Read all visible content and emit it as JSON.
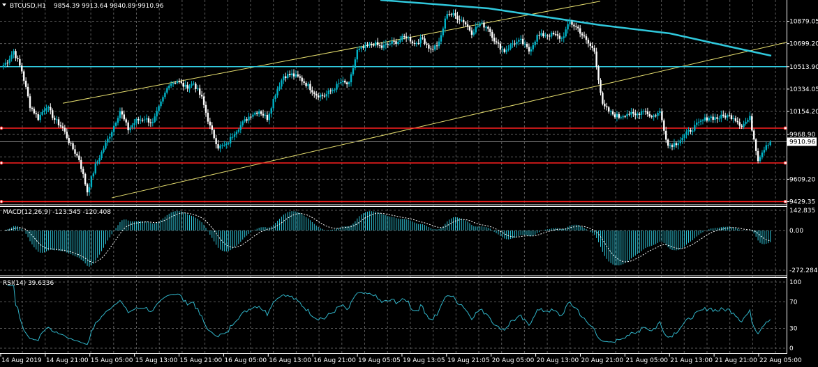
{
  "header": {
    "symbol": "BTCUSD,H1",
    "ohlc": "9854.39 9913.64 9840.89 9910.96"
  },
  "colors": {
    "background": "#000000",
    "grid": "#5a5a5a",
    "bull": "#00b4c8",
    "bear": "#ffffff",
    "support": "#ff2020",
    "trend_channel": "#e8e070",
    "cyan_level": "#30c8dc",
    "macd": "#30c8dc",
    "rsi": "#30b4c8"
  },
  "price_axis": {
    "labels": [
      "10879.05",
      "10699.20",
      "10513.90",
      "10334.05",
      "10154.20",
      "9968.90",
      "9609.20",
      "9429.35"
    ],
    "values": [
      10879.05,
      10699.2,
      10513.9,
      10334.05,
      10154.2,
      9968.9,
      9609.2,
      9429.35
    ],
    "current_price": "9910.96",
    "min": 9410,
    "max": 11050
  },
  "levels": {
    "cyan_horizontal": 10513.9,
    "support_1": 10020,
    "support_2": 9740,
    "support_3": 9429.35
  },
  "macd": {
    "label": "MACD(12,26,9) -123.545 -120.408",
    "axis_labels": [
      "142.835",
      "0.00",
      "-272.284"
    ],
    "axis_values": [
      142.835,
      0,
      -272.284
    ]
  },
  "rsi": {
    "label": "RSI(14) 39.6336",
    "axis_labels": [
      "100",
      "70",
      "30",
      "0"
    ],
    "axis_values": [
      100,
      70,
      30,
      0
    ]
  },
  "time_axis": {
    "labels": [
      "14 Aug 2019",
      "14 Aug 21:00",
      "15 Aug 05:00",
      "15 Aug 13:00",
      "15 Aug 21:00",
      "16 Aug 05:00",
      "16 Aug 13:00",
      "16 Aug 21:00",
      "19 Aug 05:05",
      "19 Aug 13:05",
      "19 Aug 21:05",
      "20 Aug 05:00",
      "20 Aug 13:00",
      "20 Aug 21:00",
      "21 Aug 05:00",
      "21 Aug 13:00",
      "21 Aug 21:00",
      "22 Aug 05:00"
    ]
  },
  "chart_data": {
    "type": "candlestick",
    "symbol": "BTCUSD",
    "timeframe": "H1",
    "anchors": [
      [
        0,
        10510
      ],
      [
        3,
        10560
      ],
      [
        6,
        10640
      ],
      [
        10,
        10480
      ],
      [
        14,
        10200
      ],
      [
        18,
        10100
      ],
      [
        22,
        10200
      ],
      [
        26,
        10090
      ],
      [
        30,
        10020
      ],
      [
        34,
        9880
      ],
      [
        38,
        9770
      ],
      [
        42,
        9510
      ],
      [
        46,
        9720
      ],
      [
        50,
        9860
      ],
      [
        54,
        10000
      ],
      [
        58,
        10160
      ],
      [
        62,
        10010
      ],
      [
        66,
        10080
      ],
      [
        70,
        10100
      ],
      [
        74,
        10060
      ],
      [
        78,
        10220
      ],
      [
        82,
        10380
      ],
      [
        86,
        10400
      ],
      [
        90,
        10350
      ],
      [
        94,
        10380
      ],
      [
        98,
        10260
      ],
      [
        102,
        10030
      ],
      [
        106,
        9870
      ],
      [
        110,
        9880
      ],
      [
        114,
        9990
      ],
      [
        118,
        10060
      ],
      [
        122,
        10130
      ],
      [
        126,
        10160
      ],
      [
        130,
        10100
      ],
      [
        134,
        10300
      ],
      [
        138,
        10440
      ],
      [
        142,
        10450
      ],
      [
        146,
        10420
      ],
      [
        150,
        10360
      ],
      [
        154,
        10290
      ],
      [
        158,
        10280
      ],
      [
        162,
        10330
      ],
      [
        166,
        10390
      ],
      [
        170,
        10370
      ],
      [
        174,
        10640
      ],
      [
        178,
        10670
      ],
      [
        182,
        10700
      ],
      [
        186,
        10670
      ],
      [
        190,
        10700
      ],
      [
        194,
        10720
      ],
      [
        198,
        10760
      ],
      [
        202,
        10700
      ],
      [
        206,
        10740
      ],
      [
        210,
        10650
      ],
      [
        214,
        10700
      ],
      [
        218,
        10950
      ],
      [
        222,
        10920
      ],
      [
        226,
        10880
      ],
      [
        230,
        10790
      ],
      [
        234,
        10860
      ],
      [
        238,
        10830
      ],
      [
        242,
        10700
      ],
      [
        246,
        10640
      ],
      [
        250,
        10700
      ],
      [
        254,
        10720
      ],
      [
        258,
        10640
      ],
      [
        262,
        10760
      ],
      [
        266,
        10770
      ],
      [
        270,
        10770
      ],
      [
        274,
        10740
      ],
      [
        278,
        10870
      ],
      [
        282,
        10820
      ],
      [
        286,
        10720
      ],
      [
        290,
        10640
      ],
      [
        294,
        10200
      ],
      [
        298,
        10140
      ],
      [
        302,
        10110
      ],
      [
        306,
        10140
      ],
      [
        310,
        10120
      ],
      [
        314,
        10170
      ],
      [
        318,
        10110
      ],
      [
        322,
        10150
      ],
      [
        326,
        9880
      ],
      [
        330,
        9900
      ],
      [
        334,
        9960
      ],
      [
        338,
        10020
      ],
      [
        342,
        10070
      ],
      [
        346,
        10110
      ],
      [
        350,
        10100
      ],
      [
        354,
        10120
      ],
      [
        358,
        10110
      ],
      [
        362,
        10040
      ],
      [
        366,
        10100
      ],
      [
        370,
        9770
      ],
      [
        374,
        9890
      ],
      [
        376,
        9911
      ]
    ]
  }
}
